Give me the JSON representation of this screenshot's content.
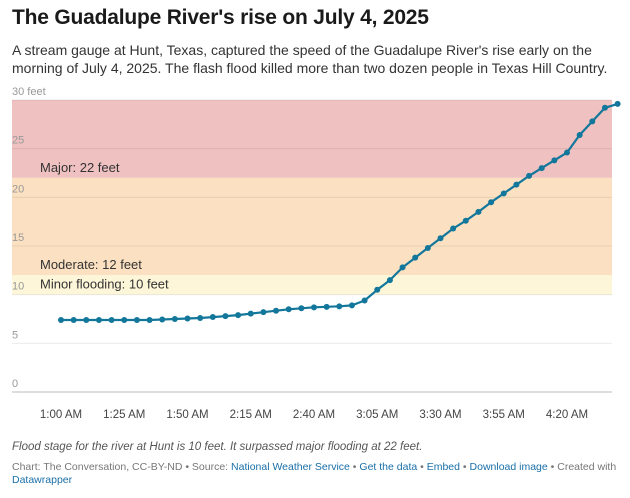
{
  "title": "The Guadalupe River's rise on July 4, 2025",
  "subtitle": "A stream gauge at Hunt, Texas, captured the speed of the Guadalupe River's rise early on the morning of July 4, 2025. The flash flood killed more than two dozen people in Texas Hill Country.",
  "note": "Flood stage for the river at Hunt is 10 feet. It surpassed major flooding at 22 feet.",
  "footer": {
    "credit": "Chart: The Conversation, CC-BY-ND • Source: ",
    "source_link": "National Weather Service",
    "sep1": " • ",
    "get_data": "Get the data",
    "sep2": " • ",
    "embed": "Embed",
    "sep3": " • ",
    "download": "Download image",
    "created": " • Created with ",
    "datawrapper": "Datawrapper"
  },
  "colors": {
    "line": "#12779b",
    "major_band": "#efc1c1",
    "moderate_band": "#fbe1c2",
    "minor_band": "#fdf6d8",
    "grid": "#e6e6e6",
    "link": "#1a6fa8"
  },
  "chart_data": {
    "type": "line",
    "xlabel": "",
    "ylabel": "",
    "ylim": [
      0,
      30
    ],
    "y_ticks": [
      "0",
      "5",
      "10",
      "15",
      "20",
      "25",
      "30 feet"
    ],
    "x_ticks": [
      "1:00 AM",
      "1:25 AM",
      "1:50 AM",
      "2:15 AM",
      "2:40 AM",
      "3:05 AM",
      "3:30 AM",
      "3:55 AM",
      "4:20 AM"
    ],
    "x_unit": "time of day, July 4, 2025 (5-minute readings from 1:00 AM to 4:40 AM)",
    "bands": [
      {
        "label": "Major: 22 feet",
        "from": 22,
        "to": 30,
        "color": "#efc1c1"
      },
      {
        "label": "Moderate: 12 feet",
        "from": 12,
        "to": 22,
        "color": "#fbe1c2"
      },
      {
        "label": "Minor flooding: 10 feet",
        "from": 10,
        "to": 12,
        "color": "#fdf6d8"
      }
    ],
    "series": [
      {
        "x": [
          "1:00 AM",
          "1:05 AM",
          "1:10 AM",
          "1:15 AM",
          "1:20 AM",
          "1:25 AM",
          "1:30 AM",
          "1:35 AM",
          "1:40 AM",
          "1:45 AM",
          "1:50 AM",
          "1:55 AM",
          "2:00 AM",
          "2:05 AM",
          "2:10 AM",
          "2:15 AM",
          "2:20 AM",
          "2:25 AM",
          "2:30 AM",
          "2:35 AM",
          "2:40 AM",
          "2:45 AM",
          "2:50 AM",
          "2:55 AM",
          "3:00 AM",
          "3:05 AM",
          "3:10 AM",
          "3:15 AM",
          "3:20 AM",
          "3:25 AM",
          "3:30 AM",
          "3:35 AM",
          "3:40 AM",
          "3:45 AM",
          "3:50 AM",
          "3:55 AM",
          "4:00 AM",
          "4:05 AM",
          "4:10 AM",
          "4:15 AM",
          "4:20 AM",
          "4:25 AM",
          "4:30 AM",
          "4:35 AM",
          "4:40 AM"
        ],
        "values": [
          7.4,
          7.4,
          7.4,
          7.4,
          7.4,
          7.4,
          7.4,
          7.4,
          7.45,
          7.5,
          7.55,
          7.6,
          7.7,
          7.8,
          7.9,
          8.05,
          8.2,
          8.35,
          8.5,
          8.6,
          8.7,
          8.75,
          8.8,
          8.9,
          9.4,
          10.5,
          11.5,
          12.8,
          13.8,
          14.8,
          15.8,
          16.8,
          17.6,
          18.5,
          19.5,
          20.4,
          21.3,
          22.2,
          23.0,
          23.8,
          24.6,
          26.4,
          27.8,
          29.2,
          29.6
        ]
      }
    ]
  }
}
